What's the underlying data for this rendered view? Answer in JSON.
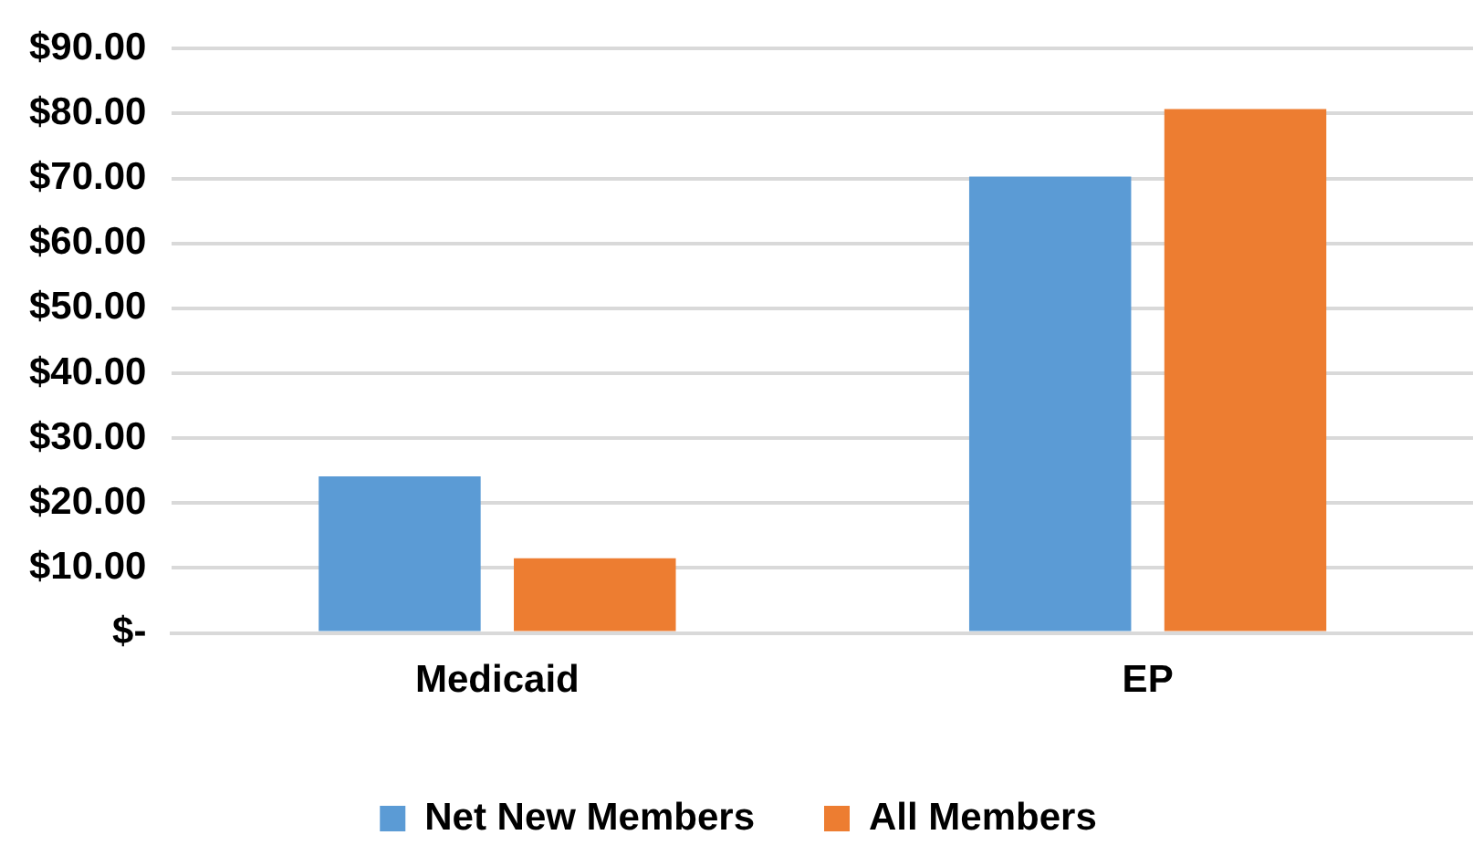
{
  "chart_data": {
    "type": "bar",
    "categories": [
      "Medicaid",
      "EP"
    ],
    "series": [
      {
        "name": "Net New Members",
        "color": "#5b9bd5",
        "values": [
          24.1,
          70.3
        ]
      },
      {
        "name": "All Members",
        "color": "#ed7d31",
        "values": [
          11.5,
          80.7
        ]
      }
    ],
    "ylim": [
      0,
      90
    ],
    "yticks": [
      {
        "value": 0,
        "label": "$-"
      },
      {
        "value": 10,
        "label": "$10.00"
      },
      {
        "value": 20,
        "label": "$20.00"
      },
      {
        "value": 30,
        "label": "$30.00"
      },
      {
        "value": 40,
        "label": "$40.00"
      },
      {
        "value": 50,
        "label": "$50.00"
      },
      {
        "value": 60,
        "label": "$60.00"
      },
      {
        "value": 70,
        "label": "$70.00"
      },
      {
        "value": 80,
        "label": "$80.00"
      },
      {
        "value": 90,
        "label": "$90.00"
      }
    ],
    "grid": "y",
    "legend": "bottom"
  }
}
